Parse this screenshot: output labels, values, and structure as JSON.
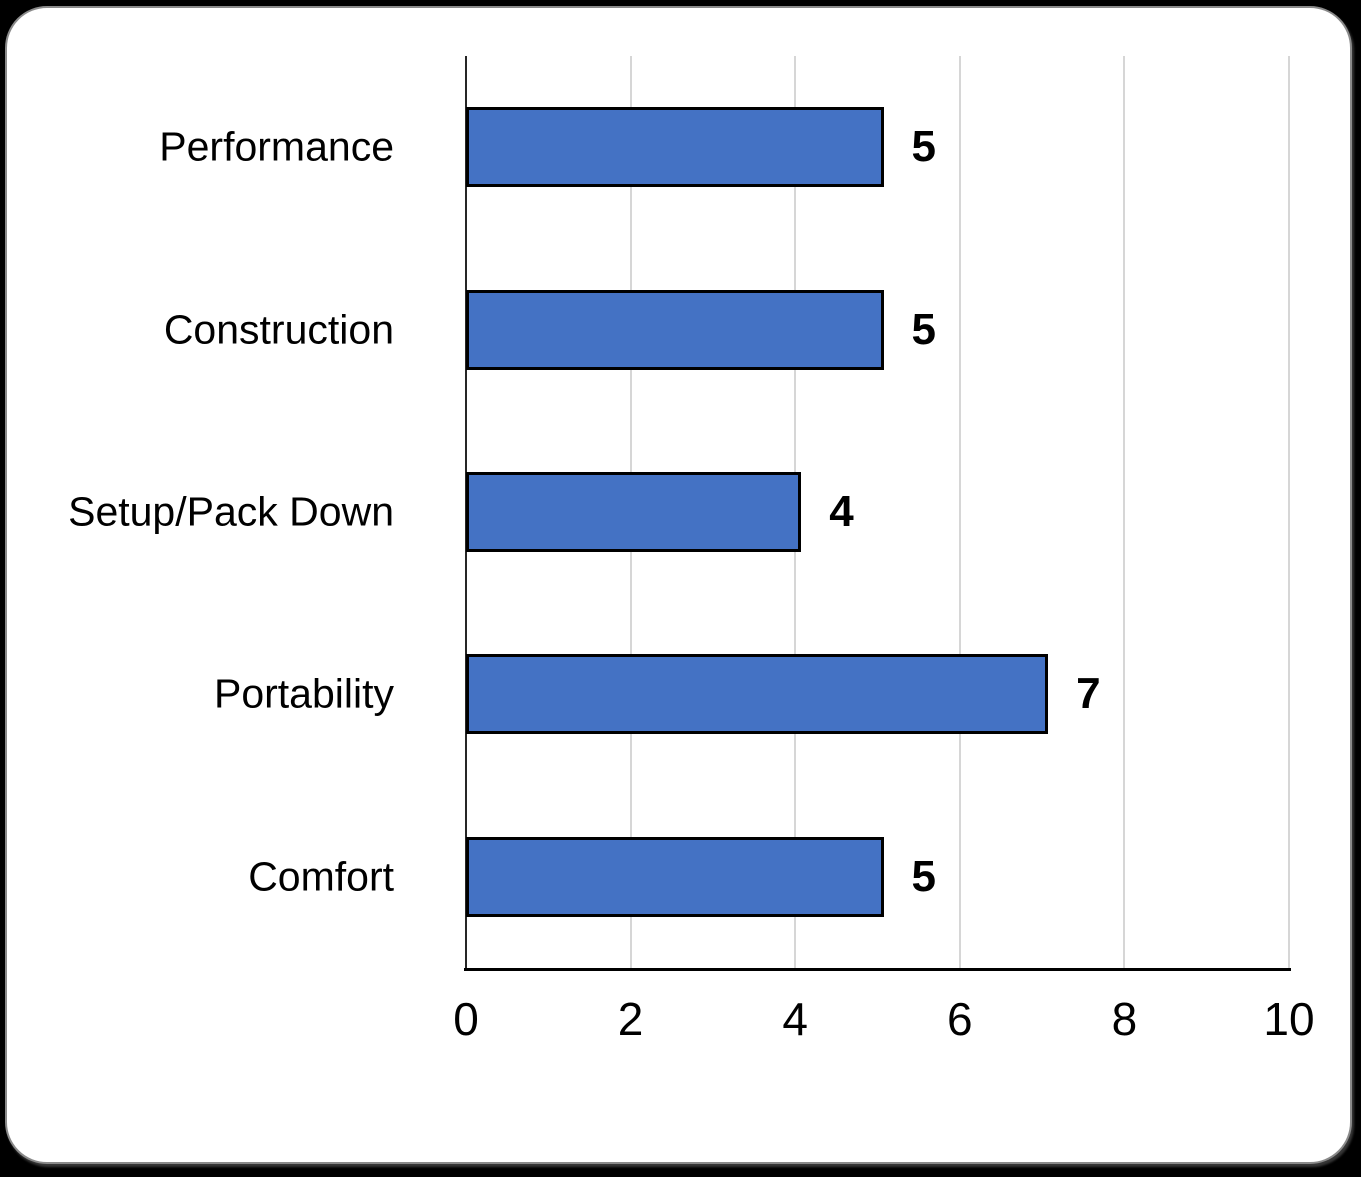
{
  "chart_data": {
    "type": "bar",
    "orientation": "horizontal",
    "title": "",
    "xlabel": "",
    "ylabel": "",
    "categories": [
      "Performance",
      "Construction",
      "Setup/Pack Down",
      "Portability",
      "Comfort"
    ],
    "values": [
      5,
      5,
      4,
      7,
      5
    ],
    "data_labels": [
      "5",
      "5",
      "4",
      "7",
      "5"
    ],
    "xlim": [
      0,
      10
    ],
    "xticks": [
      "0",
      "2",
      "4",
      "6",
      "8",
      "10"
    ],
    "xtick_values": [
      0,
      2,
      4,
      6,
      8,
      10
    ],
    "grid": "vertical-gridlines-at-ticks",
    "legend": "none",
    "colors": {
      "bar_fill": "#4472C4",
      "bar_border": "#000000",
      "gridline": "#D6D6D6",
      "y_axis_line": "#262626",
      "x_axis_line": "#000000",
      "text": "#000000",
      "card_background": "#FFFFFF",
      "card_border": "#8A8A8A",
      "page_background": "#000000"
    }
  }
}
